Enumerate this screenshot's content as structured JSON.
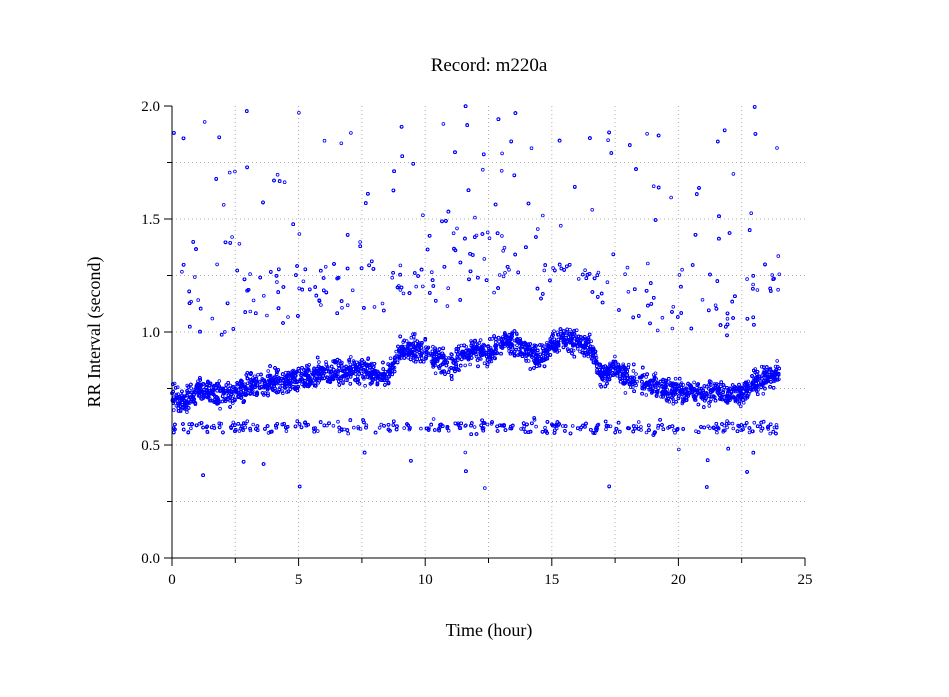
{
  "chart_data": {
    "type": "scatter",
    "title": "Record:  m220a",
    "xlabel": "Time (hour)",
    "ylabel": "RR Interval (second)",
    "xlim": [
      0,
      25
    ],
    "ylim": [
      0.0,
      2.0
    ],
    "xticks": [
      "0",
      "5",
      "10",
      "15",
      "20",
      "25"
    ],
    "yticks": [
      "0.0",
      "0.5",
      "1.0",
      "1.5",
      "2.0"
    ],
    "grid": true,
    "marker_color": "#0000ff",
    "series": [
      {
        "name": "",
        "description_of_trend": [
          {
            "x": 0.0,
            "y": 0.72
          },
          {
            "x": 0.5,
            "y": 0.68
          },
          {
            "x": 1.0,
            "y": 0.74
          },
          {
            "x": 1.5,
            "y": 0.73
          },
          {
            "x": 2.0,
            "y": 0.72
          },
          {
            "x": 2.5,
            "y": 0.73
          },
          {
            "x": 3.0,
            "y": 0.76
          },
          {
            "x": 3.5,
            "y": 0.77
          },
          {
            "x": 4.0,
            "y": 0.78
          },
          {
            "x": 4.5,
            "y": 0.78
          },
          {
            "x": 5.0,
            "y": 0.8
          },
          {
            "x": 5.5,
            "y": 0.81
          },
          {
            "x": 6.0,
            "y": 0.82
          },
          {
            "x": 6.5,
            "y": 0.82
          },
          {
            "x": 7.0,
            "y": 0.83
          },
          {
            "x": 7.5,
            "y": 0.83
          },
          {
            "x": 8.0,
            "y": 0.82
          },
          {
            "x": 8.5,
            "y": 0.8
          },
          {
            "x": 9.0,
            "y": 0.92
          },
          {
            "x": 9.5,
            "y": 0.92
          },
          {
            "x": 10.0,
            "y": 0.9
          },
          {
            "x": 10.5,
            "y": 0.88
          },
          {
            "x": 11.0,
            "y": 0.85
          },
          {
            "x": 11.5,
            "y": 0.9
          },
          {
            "x": 12.0,
            "y": 0.92
          },
          {
            "x": 12.5,
            "y": 0.9
          },
          {
            "x": 13.0,
            "y": 0.95
          },
          {
            "x": 13.5,
            "y": 0.96
          },
          {
            "x": 14.0,
            "y": 0.92
          },
          {
            "x": 14.5,
            "y": 0.88
          },
          {
            "x": 15.0,
            "y": 0.95
          },
          {
            "x": 15.5,
            "y": 0.97
          },
          {
            "x": 16.0,
            "y": 0.96
          },
          {
            "x": 16.5,
            "y": 0.93
          },
          {
            "x": 17.0,
            "y": 0.8
          },
          {
            "x": 17.5,
            "y": 0.84
          },
          {
            "x": 18.0,
            "y": 0.8
          },
          {
            "x": 18.5,
            "y": 0.78
          },
          {
            "x": 19.0,
            "y": 0.76
          },
          {
            "x": 19.5,
            "y": 0.74
          },
          {
            "x": 20.0,
            "y": 0.74
          },
          {
            "x": 20.5,
            "y": 0.73
          },
          {
            "x": 21.0,
            "y": 0.73
          },
          {
            "x": 21.5,
            "y": 0.75
          },
          {
            "x": 22.0,
            "y": 0.72
          },
          {
            "x": 22.5,
            "y": 0.73
          },
          {
            "x": 23.0,
            "y": 0.78
          },
          {
            "x": 23.5,
            "y": 0.8
          },
          {
            "x": 24.0,
            "y": 0.82
          }
        ]
      }
    ],
    "x_range_of_data": [
      0.0,
      24.0
    ],
    "y_range_of_data": [
      0.25,
      2.0
    ]
  }
}
